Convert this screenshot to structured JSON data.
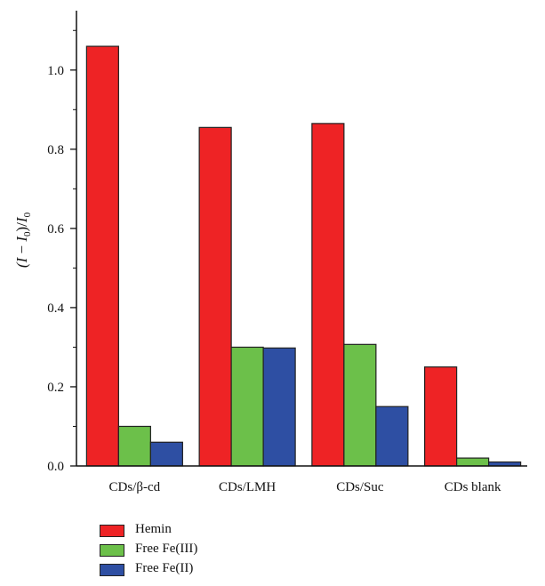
{
  "chart_data": {
    "type": "bar",
    "categories": [
      "CDs/β-cd",
      "CDs/LMH",
      "CDs/Suc",
      "CDs blank"
    ],
    "series": [
      {
        "name": "Hemin",
        "color": "#ee2325",
        "values": [
          1.06,
          0.855,
          0.865,
          0.25
        ]
      },
      {
        "name": "Free Fe(III)",
        "color": "#6cc04a",
        "values": [
          0.1,
          0.3,
          0.307,
          0.02
        ]
      },
      {
        "name": "Free Fe(II)",
        "color": "#2e4fa3",
        "values": [
          0.06,
          0.298,
          0.15,
          0.01
        ]
      }
    ],
    "ylabel": "(I − I0)/I0",
    "ylim": [
      0,
      1.15
    ],
    "yticks": [
      0.0,
      0.2,
      0.4,
      0.6,
      0.8,
      1.0
    ],
    "ytick_labels": [
      "0.0",
      "0.2",
      "0.4",
      "0.6",
      "0.8",
      "1.0"
    ],
    "legend_position": "bottom-left",
    "grid": false
  }
}
